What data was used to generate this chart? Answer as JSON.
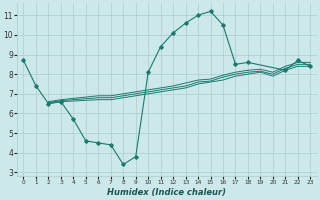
{
  "xlabel": "Humidex (Indice chaleur)",
  "bg_color": "#cce8ea",
  "grid_color": "#aacccc",
  "line_color": "#1a7a6e",
  "xlim": [
    -0.5,
    23.5
  ],
  "ylim": [
    2.8,
    11.6
  ],
  "yticks": [
    3,
    4,
    5,
    6,
    7,
    8,
    9,
    10,
    11
  ],
  "xticks": [
    0,
    1,
    2,
    3,
    4,
    5,
    6,
    7,
    8,
    9,
    10,
    11,
    12,
    13,
    14,
    15,
    16,
    17,
    18,
    19,
    20,
    21,
    22,
    23
  ],
  "main_line": {
    "x": [
      0,
      1,
      2,
      3,
      4,
      5,
      6,
      7,
      8,
      9,
      10,
      11,
      12,
      13,
      14,
      15,
      16,
      17,
      18,
      21,
      22,
      23
    ],
    "y": [
      8.7,
      7.4,
      6.5,
      6.6,
      5.7,
      4.6,
      4.5,
      4.4,
      3.4,
      3.8,
      8.1,
      9.4,
      10.1,
      10.6,
      11.0,
      11.2,
      10.5,
      8.5,
      8.6,
      8.2,
      8.7,
      8.4
    ]
  },
  "trend_lines": [
    {
      "x": [
        2,
        3,
        6,
        7,
        10,
        11,
        12,
        13,
        14,
        15,
        16,
        17,
        18,
        19,
        20,
        21,
        22,
        23
      ],
      "y": [
        6.5,
        6.6,
        6.7,
        6.7,
        7.0,
        7.1,
        7.2,
        7.3,
        7.5,
        7.6,
        7.7,
        7.9,
        8.0,
        8.1,
        7.9,
        8.2,
        8.4,
        8.4
      ]
    },
    {
      "x": [
        2,
        3,
        6,
        7,
        10,
        11,
        12,
        13,
        14,
        15,
        16,
        17,
        18,
        19,
        20,
        21,
        22,
        23
      ],
      "y": [
        6.55,
        6.65,
        6.8,
        6.8,
        7.1,
        7.2,
        7.3,
        7.4,
        7.6,
        7.65,
        7.85,
        8.0,
        8.1,
        8.15,
        8.0,
        8.3,
        8.5,
        8.5
      ]
    },
    {
      "x": [
        2,
        3,
        6,
        7,
        10,
        11,
        12,
        13,
        14,
        15,
        16,
        17,
        18,
        19,
        20,
        21,
        22,
        23
      ],
      "y": [
        6.6,
        6.7,
        6.9,
        6.9,
        7.2,
        7.3,
        7.4,
        7.55,
        7.7,
        7.75,
        7.95,
        8.1,
        8.2,
        8.25,
        8.1,
        8.4,
        8.6,
        8.6
      ]
    }
  ]
}
